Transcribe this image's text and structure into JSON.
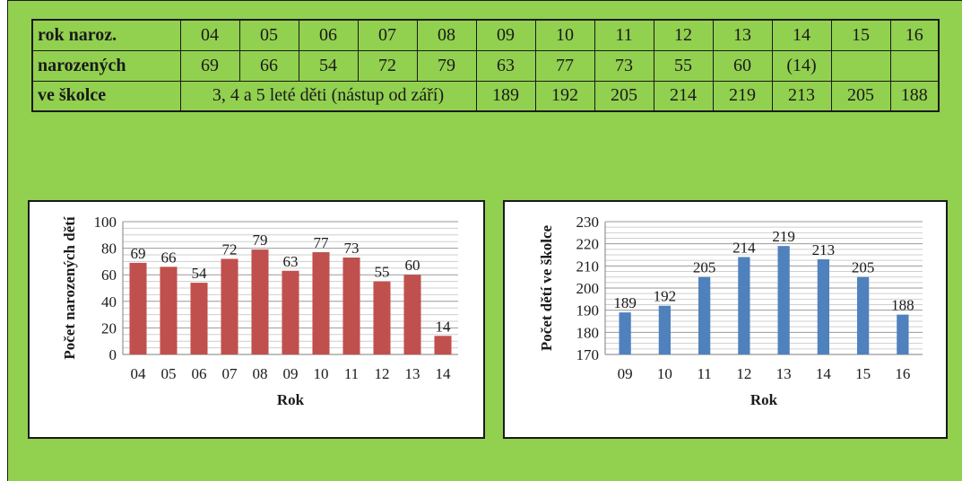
{
  "table": {
    "header_row": {
      "label": "rok naroz.",
      "cells": [
        "04",
        "05",
        "06",
        "07",
        "08",
        "09",
        "10",
        "11",
        "12",
        "13",
        "14",
        "15",
        "16"
      ]
    },
    "births_row": {
      "label": "narozených",
      "cells": [
        "69",
        "66",
        "54",
        "72",
        "79",
        "63",
        "77",
        "73",
        "55",
        "60",
        "(14)",
        "",
        ""
      ]
    },
    "kindergarten_row": {
      "label": "ve školce",
      "note": "3, 4 a 5 leté děti (nástup od září)",
      "cells": [
        "189",
        "192",
        "205",
        "214",
        "219",
        "213",
        "205",
        "188"
      ]
    }
  },
  "colors": {
    "page_background": "#92d050",
    "births_bar": "#c0504d",
    "kindergarten_bar": "#4f81bd"
  },
  "chart_data": [
    {
      "type": "bar",
      "categories": [
        "04",
        "05",
        "06",
        "07",
        "08",
        "09",
        "10",
        "11",
        "12",
        "13",
        "14"
      ],
      "values": [
        69,
        66,
        54,
        72,
        79,
        63,
        77,
        73,
        55,
        60,
        14
      ],
      "title": "",
      "xlabel": "Rok",
      "ylabel": "Počet narozených dětí",
      "ylim": [
        0,
        100
      ],
      "yticks": [
        0,
        20,
        40,
        60,
        80,
        100
      ],
      "grid": true,
      "color": "#c0504d"
    },
    {
      "type": "bar",
      "categories": [
        "09",
        "10",
        "11",
        "12",
        "13",
        "14",
        "15",
        "16"
      ],
      "values": [
        189,
        192,
        205,
        214,
        219,
        213,
        205,
        188
      ],
      "title": "",
      "xlabel": "Rok",
      "ylabel": "Počet dětí ve školce",
      "ylim": [
        170,
        230
      ],
      "yticks": [
        170,
        180,
        190,
        200,
        210,
        220,
        230
      ],
      "grid": true,
      "color": "#4f81bd"
    }
  ]
}
